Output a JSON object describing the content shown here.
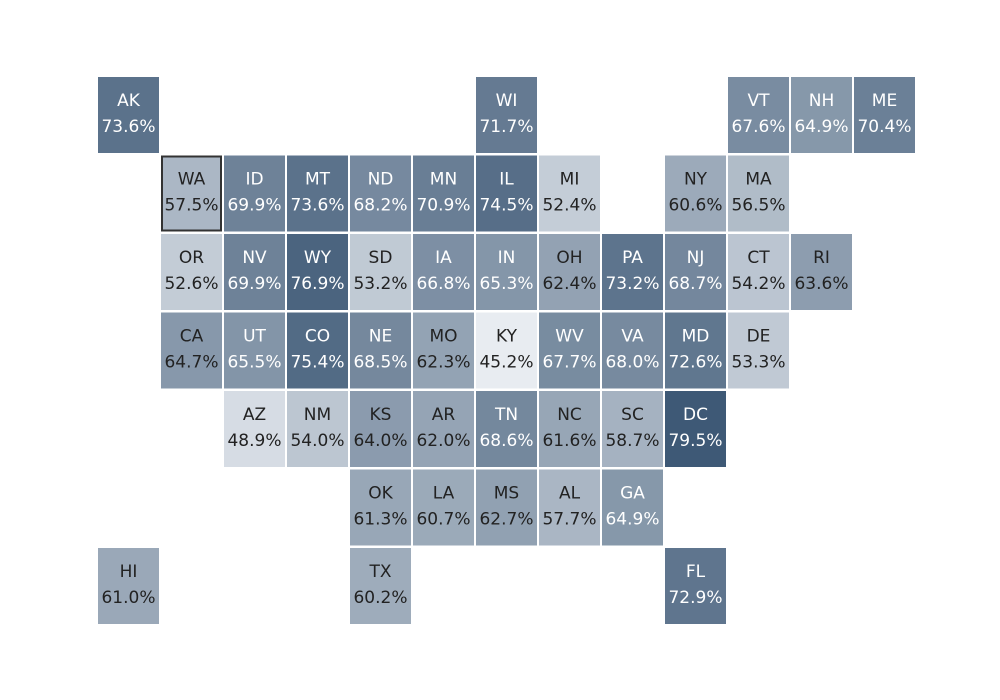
{
  "tiles": [
    {
      "state": "AK",
      "value": 73.6,
      "value_label": "73.6%"
    },
    {
      "state": "WI",
      "value": 71.7,
      "value_label": "71.7%"
    },
    {
      "state": "VT",
      "value": 67.6,
      "value_label": "67.6%"
    },
    {
      "state": "NH",
      "value": 64.9,
      "value_label": "64.9%"
    },
    {
      "state": "ME",
      "value": 70.4,
      "value_label": "70.4%"
    },
    {
      "state": "WA",
      "value": 57.5,
      "value_label": "57.5%"
    },
    {
      "state": "ID",
      "value": 69.9,
      "value_label": "69.9%"
    },
    {
      "state": "MT",
      "value": 73.6,
      "value_label": "73.6%"
    },
    {
      "state": "ND",
      "value": 68.2,
      "value_label": "68.2%"
    },
    {
      "state": "MN",
      "value": 70.9,
      "value_label": "70.9%"
    },
    {
      "state": "IL",
      "value": 74.5,
      "value_label": "74.5%"
    },
    {
      "state": "MI",
      "value": 52.4,
      "value_label": "52.4%"
    },
    {
      "state": "NY",
      "value": 60.6,
      "value_label": "60.6%"
    },
    {
      "state": "MA",
      "value": 56.5,
      "value_label": "56.5%"
    },
    {
      "state": "OR",
      "value": 52.6,
      "value_label": "52.6%"
    },
    {
      "state": "NV",
      "value": 69.9,
      "value_label": "69.9%"
    },
    {
      "state": "WY",
      "value": 76.9,
      "value_label": "76.9%"
    },
    {
      "state": "SD",
      "value": 53.2,
      "value_label": "53.2%"
    },
    {
      "state": "IA",
      "value": 66.8,
      "value_label": "66.8%"
    },
    {
      "state": "IN",
      "value": 65.3,
      "value_label": "65.3%"
    },
    {
      "state": "OH",
      "value": 62.4,
      "value_label": "62.4%"
    },
    {
      "state": "PA",
      "value": 73.2,
      "value_label": "73.2%"
    },
    {
      "state": "NJ",
      "value": 68.7,
      "value_label": "68.7%"
    },
    {
      "state": "CT",
      "value": 54.2,
      "value_label": "54.2%"
    },
    {
      "state": "RI",
      "value": 63.6,
      "value_label": "63.6%"
    },
    {
      "state": "CA",
      "value": 64.7,
      "value_label": "64.7%"
    },
    {
      "state": "UT",
      "value": 65.5,
      "value_label": "65.5%"
    },
    {
      "state": "CO",
      "value": 75.4,
      "value_label": "75.4%"
    },
    {
      "state": "NE",
      "value": 68.5,
      "value_label": "68.5%"
    },
    {
      "state": "MO",
      "value": 62.3,
      "value_label": "62.3%"
    },
    {
      "state": "KY",
      "value": 45.2,
      "value_label": "45.2%"
    },
    {
      "state": "WV",
      "value": 67.7,
      "value_label": "67.7%"
    },
    {
      "state": "VA",
      "value": 68.0,
      "value_label": "68.0%"
    },
    {
      "state": "MD",
      "value": 72.6,
      "value_label": "72.6%"
    },
    {
      "state": "DE",
      "value": 53.3,
      "value_label": "53.3%"
    },
    {
      "state": "AZ",
      "value": 48.9,
      "value_label": "48.9%"
    },
    {
      "state": "NM",
      "value": 54.0,
      "value_label": "54.0%"
    },
    {
      "state": "KS",
      "value": 64.0,
      "value_label": "64.0%"
    },
    {
      "state": "AR",
      "value": 62.0,
      "value_label": "62.0%"
    },
    {
      "state": "TN",
      "value": 68.6,
      "value_label": "68.6%"
    },
    {
      "state": "NC",
      "value": 61.6,
      "value_label": "61.6%"
    },
    {
      "state": "SC",
      "value": 58.7,
      "value_label": "58.7%"
    },
    {
      "state": "DC",
      "value": 79.5,
      "value_label": "79.5%"
    },
    {
      "state": "OK",
      "value": 61.3,
      "value_label": "61.3%"
    },
    {
      "state": "LA",
      "value": 60.7,
      "value_label": "60.7%"
    },
    {
      "state": "MS",
      "value": 62.7,
      "value_label": "62.7%"
    },
    {
      "state": "AL",
      "value": 57.7,
      "value_label": "57.7%"
    },
    {
      "state": "GA",
      "value": 64.9,
      "value_label": "64.9%"
    },
    {
      "state": "HI",
      "value": 61.0,
      "value_label": "61.0%"
    },
    {
      "state": "TX",
      "value": 60.2,
      "value_label": "60.2%"
    },
    {
      "state": "FL",
      "value": 72.9,
      "value_label": "72.9%"
    }
  ]
}
